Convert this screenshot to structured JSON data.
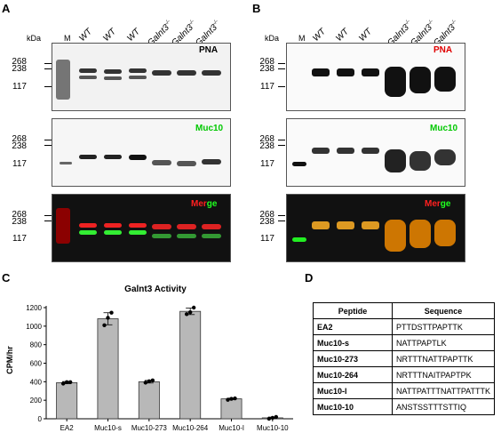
{
  "panels": {
    "A": "A",
    "B": "B",
    "C": "C",
    "D": "D"
  },
  "blot": {
    "kda": "kDa",
    "marker": "M",
    "lanes": [
      "WT",
      "WT",
      "WT",
      "Galnt3",
      "Galnt3",
      "Galnt3"
    ],
    "ko_sup": "-/-",
    "mw": [
      "268",
      "238",
      "117"
    ],
    "tags": {
      "pna": "PNA",
      "muc10": "Muc10",
      "merge_a": "Mer",
      "merge_b": "ge"
    },
    "colors": {
      "pna": "#e00000",
      "muc10": "#00c800",
      "merge_red": "#ff2020",
      "merge_green": "#20ff20"
    }
  },
  "chart_data": {
    "type": "bar",
    "title": "Galnt3 Activity",
    "ylabel": "CPM/hr",
    "xlabel": "",
    "categories": [
      "EA2",
      "Muc10-s",
      "Muc10-273",
      "Muc10-264",
      "Muc10-l",
      "Muc10-10"
    ],
    "values": [
      390,
      1080,
      400,
      1160,
      215,
      10
    ],
    "points": [
      [
        380,
        395,
        395
      ],
      [
        1010,
        1090,
        1145
      ],
      [
        390,
        405,
        415
      ],
      [
        1130,
        1150,
        1200
      ],
      [
        205,
        215,
        220
      ],
      [
        0,
        10,
        20
      ]
    ],
    "errors": [
      12,
      65,
      14,
      35,
      8,
      8
    ],
    "ylim": [
      0,
      1200
    ],
    "yticks": [
      "0",
      "200",
      "400",
      "600",
      "800",
      "1000",
      "1200"
    ]
  },
  "table": {
    "headers": [
      "Peptide",
      "Sequence"
    ],
    "rows": [
      [
        "EA2",
        "PTTDSTTPAPTTK"
      ],
      [
        "Muc10-s",
        "NATTPAPTLK"
      ],
      [
        "Muc10-273",
        "NRTTTNATTPAPTTK"
      ],
      [
        "Muc10-264",
        "NRTTTNAITPAPTPK"
      ],
      [
        "Muc10-l",
        "NATTPATTTNATTPATTTK"
      ],
      [
        "Muc10-10",
        "ANSTSSTTTSTTIQ"
      ]
    ]
  }
}
